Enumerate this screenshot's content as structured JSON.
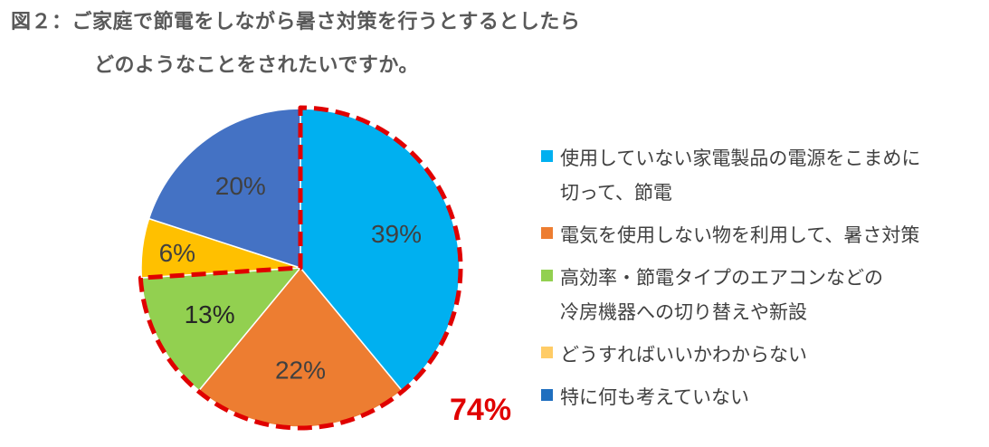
{
  "title": {
    "line1": "図２：ご家庭で節電をしながら暑さ対策を行うとするとしたら",
    "line2": "どのようなことをされたいですか。"
  },
  "chart_data": {
    "type": "pie",
    "slices": [
      {
        "label_lines": [
          "使用していない家電製品の電源をこまめに",
          "切って、節電"
        ],
        "value": 39,
        "label": "39%",
        "color": "#00b0f0",
        "text_color": "#404040",
        "legend_color": "#00b0f0"
      },
      {
        "label_lines": [
          "電気を使用しない物を利用して、暑さ対策"
        ],
        "value": 22,
        "label": "22%",
        "color": "#ed7d31",
        "text_color": "#404040",
        "legend_color": "#ed7d31"
      },
      {
        "label_lines": [
          "高効率・節電タイプのエアコンなどの",
          "冷房機器への切り替えや新設"
        ],
        "value": 13,
        "label": "13%",
        "color": "#92d050",
        "text_color": "#262626",
        "legend_color": "#92d050"
      },
      {
        "label_lines": [
          "どうすればいいかわからない"
        ],
        "value": 6,
        "label": "6%",
        "color": "#ffc000",
        "text_color": "#404040",
        "legend_color": "#ffcc66"
      },
      {
        "label_lines": [
          "特に何も考えていない"
        ],
        "value": 20,
        "label": "20%",
        "color": "#4472c4",
        "text_color": "#404040",
        "legend_color": "#1f6fbf"
      }
    ],
    "start_angle_deg": 0,
    "direction": "clockwise",
    "legend_position": "right",
    "highlight": {
      "label": "74%",
      "color": "#e00000",
      "slice_indices": [
        0,
        1,
        2
      ]
    }
  }
}
